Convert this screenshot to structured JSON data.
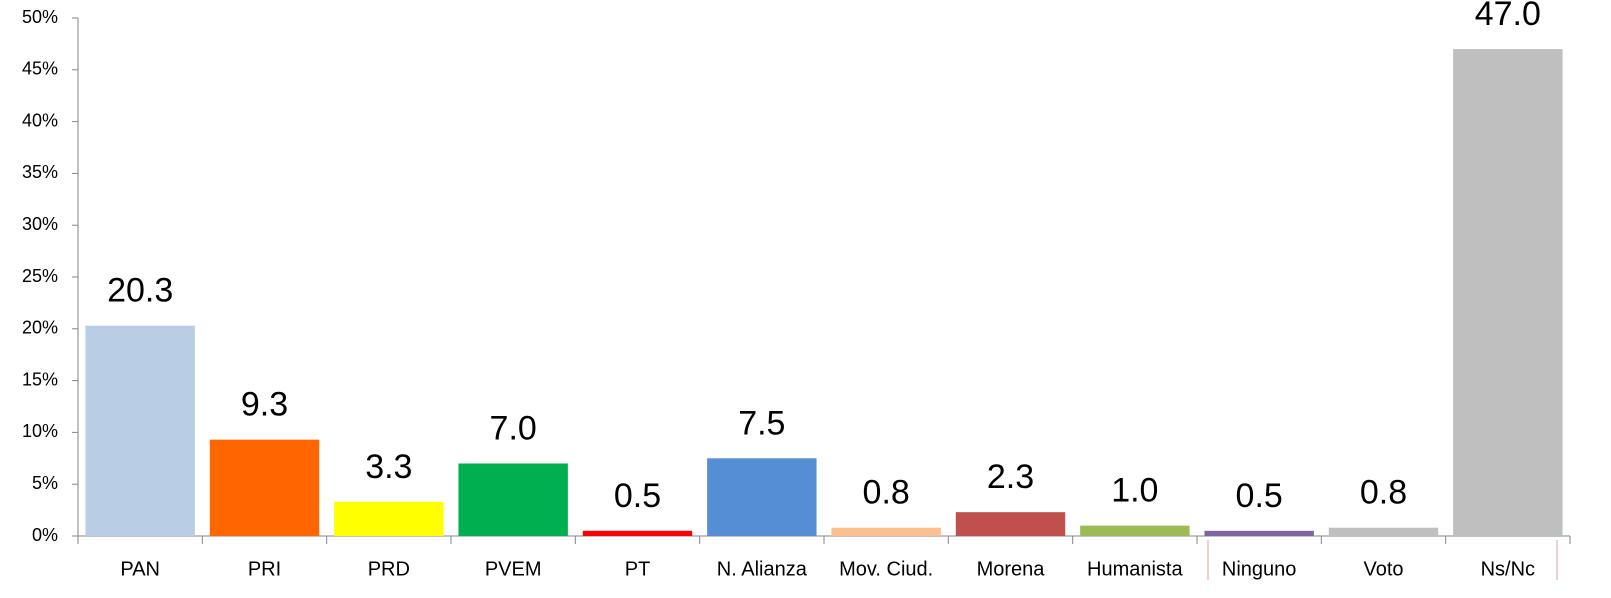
{
  "chart_data": {
    "type": "bar",
    "categories": [
      "PAN",
      "PRI",
      "PRD",
      "PVEM",
      "PT",
      "N. Alianza",
      "Mov. Ciud.",
      "Morena",
      "Humanista",
      "Ninguno",
      "Voto",
      "Ns/Nc"
    ],
    "values": [
      20.3,
      9.3,
      3.3,
      7.0,
      0.5,
      7.5,
      0.8,
      2.3,
      1.0,
      0.5,
      0.8,
      47.0
    ],
    "value_labels": [
      "20.3",
      "9.3",
      "3.3",
      "7.0",
      "0.5",
      "7.5",
      "0.8",
      "2.3",
      "1.0",
      "0.5",
      "0.8",
      "47.0"
    ],
    "colors": [
      "#b9cde5",
      "#ff6600",
      "#ffff00",
      "#00b050",
      "#ff0000",
      "#558ed5",
      "#fac090",
      "#c0504d",
      "#9bbb59",
      "#8064a2",
      "#bfbfbf",
      "#bfbfbf"
    ],
    "ylim": [
      0,
      50
    ],
    "yticks": [
      {
        "value": 0,
        "label": "0%"
      },
      {
        "value": 5,
        "label": "5%"
      },
      {
        "value": 10,
        "label": "10%"
      },
      {
        "value": 15,
        "label": "15%"
      },
      {
        "value": 20,
        "label": "20%"
      },
      {
        "value": 25,
        "label": "25%"
      },
      {
        "value": 30,
        "label": "30%"
      },
      {
        "value": 35,
        "label": "35%"
      },
      {
        "value": 40,
        "label": "40%"
      },
      {
        "value": 45,
        "label": "45%"
      },
      {
        "value": 50,
        "label": "50%"
      }
    ],
    "grid": false
  }
}
